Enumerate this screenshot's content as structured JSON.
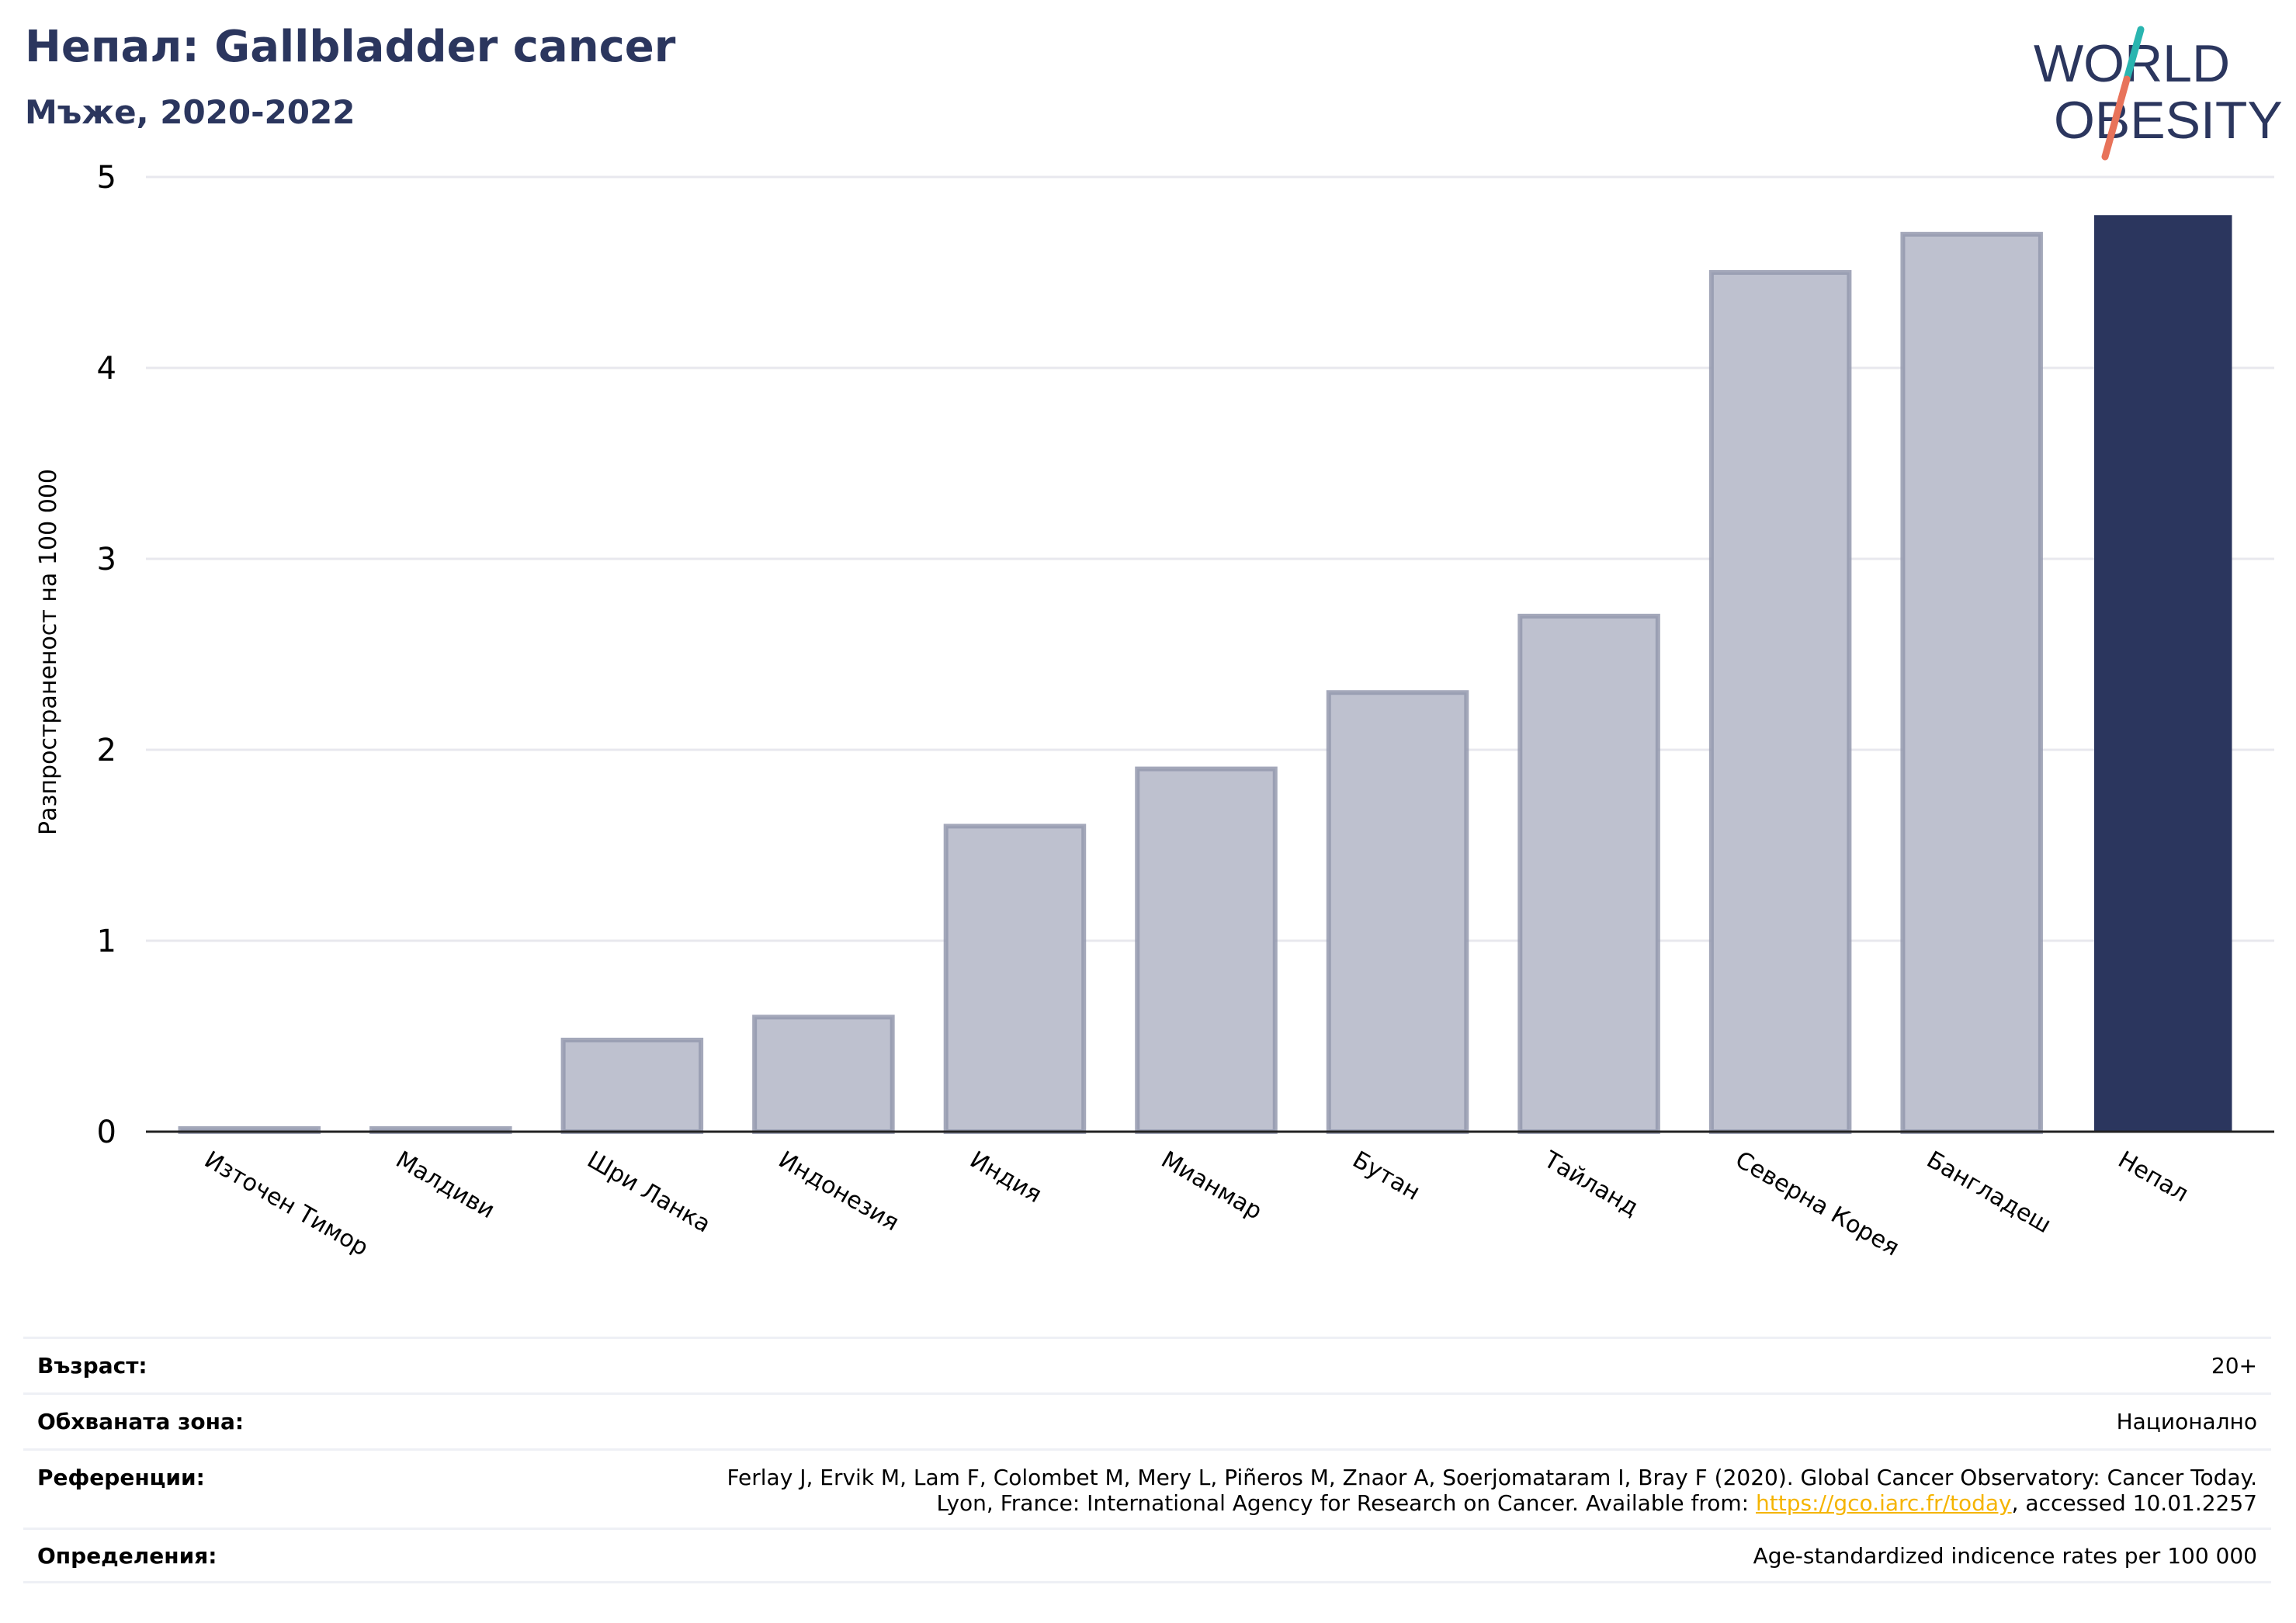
{
  "header": {
    "title": "Непал: Gallbladder cancer",
    "subtitle": "Мъже, 2020-2022"
  },
  "logo": {
    "line1": "WORLD",
    "line2": "OBESITY",
    "text_color": "#2b365e",
    "teal": "#2ab5b0",
    "coral": "#e8735a"
  },
  "colors": {
    "bar": "#bec1cf",
    "bar_edge": "#9499ae",
    "highlight": "#2b365e",
    "grid": "#e8e8ee"
  },
  "chart_data": {
    "type": "bar",
    "categories": [
      "Източен Тимор",
      "Малдиви",
      "Шри Ланка",
      "Индонезия",
      "Индия",
      "Мианмар",
      "Бутан",
      "Тайланд",
      "Северна Корея",
      "Бангладеш",
      "Непал"
    ],
    "values": [
      0,
      0,
      0.48,
      0.6,
      1.6,
      1.9,
      2.3,
      2.7,
      4.5,
      4.7,
      4.8
    ],
    "highlight_category": "Непал",
    "ylabel": "Разпространеност  на 100 000",
    "xlabel": "",
    "ylim": [
      0,
      5
    ],
    "yticks": [
      0,
      1,
      2,
      3,
      4,
      5
    ],
    "grid": true
  },
  "footer": {
    "age_label": "Възраст:",
    "age_value": "20+",
    "coverage_label": "Обхваната зона:",
    "coverage_value": "Национално",
    "references_label": "Референции:",
    "references_line1": "Ferlay J, Ervik M, Lam F, Colombet M, Mery L, Piñeros M, Znaor A, Soerjomataram I, Bray F (2020). Global Cancer Observatory: Cancer Today.",
    "references_line2_pre": "Lyon, France: International Agency for Research on Cancer. Available from: ",
    "references_link": "https://gco.iarc.fr/today",
    "references_line2_post": ", accessed 10.01.2257",
    "definitions_label": "Определения:",
    "definitions_value": "Age-standardized indicence rates per 100 000"
  }
}
